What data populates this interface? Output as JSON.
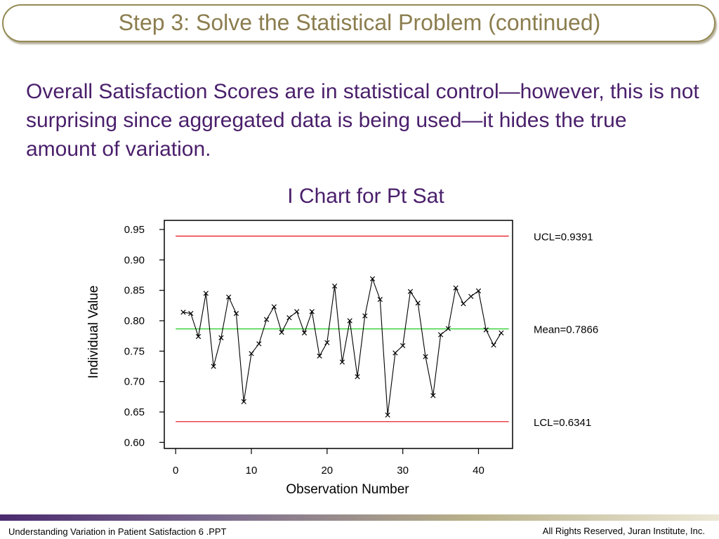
{
  "slide": {
    "title": "Step 3: Solve the Statistical Problem (continued)",
    "body": "Overall Satisfaction Scores are in statistical control—however, this is not surprising since aggregated data is being used—it hides the true amount of variation."
  },
  "chart_data": {
    "type": "line",
    "title": "I Chart for Pt Sat",
    "xlabel": "Observation Number",
    "ylabel": "Individual Value",
    "xlim": [
      -1.5,
      44.5
    ],
    "ylim": [
      0.59,
      0.965
    ],
    "x_ticks": [
      0,
      10,
      20,
      30,
      40
    ],
    "x_tick_labels": [
      "0",
      "10",
      "20",
      "30",
      "40"
    ],
    "y_ticks": [
      0.6,
      0.65,
      0.7,
      0.75,
      0.8,
      0.85,
      0.9,
      0.95
    ],
    "y_tick_labels": [
      "0.60",
      "0.65",
      "0.70",
      "0.75",
      "0.80",
      "0.85",
      "0.90",
      "0.95"
    ],
    "marker": "x",
    "series": [
      {
        "x": [
          1,
          2,
          3,
          4,
          5,
          6,
          7,
          8,
          9,
          10,
          11,
          12,
          13,
          14,
          15,
          16,
          17,
          18,
          19,
          20,
          21,
          22,
          23,
          24,
          25,
          26,
          27,
          28,
          29,
          30,
          31,
          32,
          33,
          34,
          35,
          36,
          37,
          38,
          39,
          40,
          41,
          42,
          43
        ],
        "values": [
          0.814,
          0.812,
          0.774,
          0.845,
          0.725,
          0.772,
          0.839,
          0.812,
          0.667,
          0.746,
          0.762,
          0.802,
          0.823,
          0.781,
          0.805,
          0.815,
          0.78,
          0.815,
          0.742,
          0.764,
          0.857,
          0.732,
          0.8,
          0.708,
          0.808,
          0.869,
          0.835,
          0.645,
          0.747,
          0.759,
          0.848,
          0.829,
          0.741,
          0.677,
          0.777,
          0.787,
          0.854,
          0.828,
          0.84,
          0.849,
          0.785,
          0.76,
          0.78
        ],
        "color": "#000000"
      }
    ],
    "reference_lines": [
      {
        "label": "UCL=0.9391",
        "value": 0.9391,
        "color": "#e8212b"
      },
      {
        "label": "Mean=0.7866",
        "value": 0.7866,
        "color": "#22cc22"
      },
      {
        "label": "LCL=0.6341",
        "value": 0.6341,
        "color": "#e8212b"
      }
    ],
    "grid": false
  },
  "footer": {
    "left": "Understanding Variation in Patient Satisfaction 6 .PPT",
    "right": "All Rights Reserved, Juran Institute, Inc."
  }
}
